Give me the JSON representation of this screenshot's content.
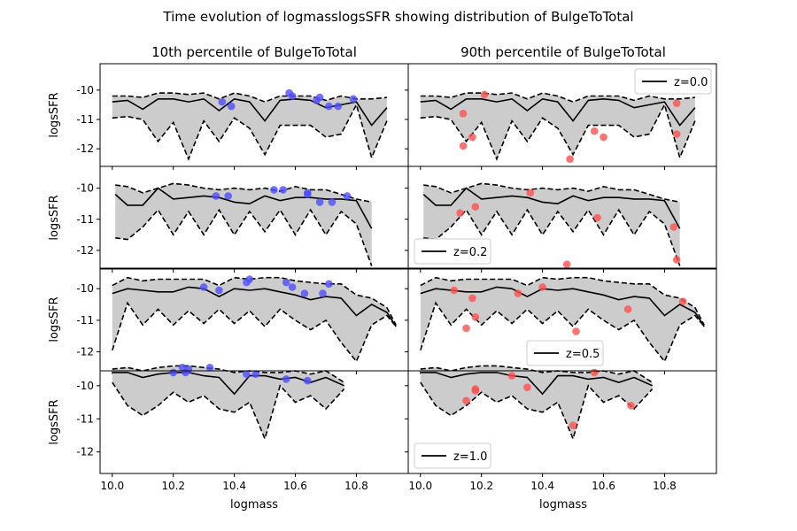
{
  "title": "Time evolution of logmasslogsSFR showing distribution of BulgeToTotal",
  "colors": {
    "band_fill": "#cccccc",
    "line": "#000000",
    "left_points": "#4d4dff",
    "right_points": "#ff5050",
    "background": "#ffffff"
  },
  "chart_data": {
    "type": "line",
    "layout": "4 rows x 2 columns small multiples",
    "xlabel": "logmass",
    "ylabel": "logsSFR",
    "xlim": [
      9.96,
      10.97
    ],
    "x_ticks": [
      "10.0",
      "10.2",
      "10.4",
      "10.6",
      "10.8"
    ],
    "grid": false,
    "column_titles": [
      "10th percentile of BulgeToTotal",
      "90th percentile of BulgeToTotal"
    ],
    "rows": [
      {
        "legend": "z=0.0",
        "legend_position": "upper right",
        "ylim": [
          -12.6,
          -9.1
        ],
        "y_ticks": [
          "-10",
          "-11",
          "-12"
        ],
        "x": [
          10.0,
          10.05,
          10.1,
          10.15,
          10.2,
          10.25,
          10.3,
          10.35,
          10.4,
          10.45,
          10.5,
          10.55,
          10.6,
          10.65,
          10.7,
          10.75,
          10.8,
          10.85,
          10.9
        ],
        "median": [
          -10.4,
          -10.35,
          -10.65,
          -10.3,
          -10.3,
          -10.4,
          -10.3,
          -10.7,
          -10.3,
          -10.4,
          -11.05,
          -10.35,
          -10.3,
          -10.35,
          -10.6,
          -10.5,
          -10.4,
          -11.2,
          -10.6
        ],
        "upper": [
          -10.2,
          -10.2,
          -10.25,
          -10.1,
          -10.1,
          -10.15,
          -10.1,
          -10.3,
          -10.1,
          -10.2,
          -10.4,
          -10.2,
          -10.2,
          -10.2,
          -10.35,
          -10.2,
          -10.3,
          -10.3,
          -10.25
        ],
        "lower": [
          -10.95,
          -10.9,
          -11.0,
          -11.75,
          -11.1,
          -12.35,
          -11.05,
          -11.75,
          -10.95,
          -11.3,
          -12.2,
          -11.2,
          -11.2,
          -11.2,
          -11.6,
          -11.5,
          -10.5,
          -12.3,
          -11.05
        ],
        "points_left": [
          [
            10.36,
            -10.4
          ],
          [
            10.39,
            -10.55
          ],
          [
            10.58,
            -10.1
          ],
          [
            10.59,
            -10.2
          ],
          [
            10.67,
            -10.35
          ],
          [
            10.68,
            -10.25
          ],
          [
            10.71,
            -10.55
          ],
          [
            10.74,
            -10.55
          ],
          [
            10.79,
            -10.3
          ]
        ],
        "points_right": [
          [
            10.14,
            -10.8
          ],
          [
            10.14,
            -11.9
          ],
          [
            10.17,
            -11.6
          ],
          [
            10.21,
            -10.15
          ],
          [
            10.49,
            -12.35
          ],
          [
            10.57,
            -11.4
          ],
          [
            10.6,
            -11.6
          ],
          [
            10.84,
            -10.45
          ],
          [
            10.84,
            -11.5
          ]
        ]
      },
      {
        "legend": "z=0.2",
        "legend_position": "lower left",
        "ylim": [
          -12.6,
          -9.3
        ],
        "y_ticks": [
          "-10",
          "-11",
          "-12"
        ],
        "x": [
          10.01,
          10.05,
          10.1,
          10.15,
          10.2,
          10.25,
          10.3,
          10.35,
          10.4,
          10.45,
          10.5,
          10.55,
          10.6,
          10.65,
          10.7,
          10.75,
          10.8,
          10.85
        ],
        "median": [
          -10.2,
          -10.55,
          -10.55,
          -10.0,
          -10.35,
          -10.3,
          -10.25,
          -10.3,
          -10.45,
          -10.5,
          -10.25,
          -10.4,
          -10.3,
          -10.3,
          -10.35,
          -10.35,
          -10.4,
          -11.3
        ],
        "upper": [
          -9.9,
          -9.95,
          -10.15,
          -10.0,
          -9.85,
          -9.9,
          -10.0,
          -10.05,
          -10.0,
          -10.05,
          -10.0,
          -10.1,
          -9.95,
          -10.05,
          -10.05,
          -10.2,
          -10.35,
          -10.45
        ],
        "lower": [
          -11.6,
          -11.65,
          -11.25,
          -10.7,
          -11.5,
          -10.75,
          -11.5,
          -10.7,
          -11.5,
          -10.75,
          -11.4,
          -10.7,
          -11.5,
          -10.7,
          -11.5,
          -10.75,
          -11.15,
          -12.5
        ],
        "points_left": [
          [
            10.34,
            -10.25
          ],
          [
            10.38,
            -10.25
          ],
          [
            10.53,
            -10.05
          ],
          [
            10.56,
            -10.05
          ],
          [
            10.64,
            -10.15
          ],
          [
            10.64,
            -10.2
          ],
          [
            10.68,
            -10.45
          ],
          [
            10.72,
            -10.45
          ],
          [
            10.77,
            -10.25
          ]
        ],
        "points_right": [
          [
            10.13,
            -10.8
          ],
          [
            10.18,
            -10.6
          ],
          [
            10.36,
            -10.15
          ],
          [
            10.48,
            -12.45
          ],
          [
            10.58,
            -10.95
          ],
          [
            10.83,
            -11.25
          ],
          [
            10.84,
            -12.3
          ]
        ]
      },
      {
        "legend": "z=0.5",
        "legend_position": "lower center",
        "ylim": [
          -12.6,
          -9.35
        ],
        "y_ticks": [
          "-10",
          "-11",
          "-12"
        ],
        "x": [
          10.0,
          10.05,
          10.1,
          10.15,
          10.2,
          10.25,
          10.3,
          10.35,
          10.4,
          10.45,
          10.5,
          10.55,
          10.6,
          10.65,
          10.7,
          10.75,
          10.8,
          10.85,
          10.9,
          10.93
        ],
        "median": [
          -10.15,
          -10.0,
          -10.05,
          -10.1,
          -10.1,
          -9.95,
          -10.0,
          -10.25,
          -10.0,
          -10.05,
          -10.0,
          -10.1,
          -10.2,
          -10.35,
          -10.25,
          -10.3,
          -10.85,
          -10.5,
          -10.75,
          -11.2
        ],
        "upper": [
          -9.9,
          -9.65,
          -9.75,
          -9.7,
          -9.7,
          -9.7,
          -9.7,
          -9.9,
          -9.65,
          -9.7,
          -9.65,
          -9.65,
          -9.75,
          -9.8,
          -9.85,
          -9.85,
          -10.2,
          -10.3,
          -10.6,
          -11.15
        ],
        "lower": [
          -11.95,
          -10.45,
          -11.15,
          -10.65,
          -11.15,
          -10.7,
          -11.1,
          -10.65,
          -11.1,
          -10.7,
          -11.2,
          -10.65,
          -11.0,
          -11.3,
          -11.0,
          -11.7,
          -12.3,
          -11.15,
          -10.85,
          -11.2
        ],
        "points_left": [
          [
            10.3,
            -9.95
          ],
          [
            10.35,
            -10.05
          ],
          [
            10.44,
            -9.8
          ],
          [
            10.45,
            -9.7
          ],
          [
            10.57,
            -9.8
          ],
          [
            10.59,
            -9.95
          ],
          [
            10.63,
            -10.15
          ],
          [
            10.69,
            -10.15
          ],
          [
            10.71,
            -9.85
          ]
        ],
        "points_right": [
          [
            10.11,
            -10.05
          ],
          [
            10.15,
            -11.25
          ],
          [
            10.17,
            -10.3
          ],
          [
            10.18,
            -10.9
          ],
          [
            10.32,
            -10.15
          ],
          [
            10.4,
            -9.95
          ],
          [
            10.51,
            -11.35
          ],
          [
            10.68,
            -10.65
          ],
          [
            10.86,
            -10.4
          ]
        ]
      },
      {
        "legend": "z=1.0",
        "legend_position": "lower left",
        "ylim": [
          -12.65,
          -9.55
        ],
        "y_ticks": [
          "-10",
          "-11",
          "-12"
        ],
        "x": [
          10.0,
          10.05,
          10.1,
          10.15,
          10.2,
          10.25,
          10.3,
          10.35,
          10.4,
          10.45,
          10.5,
          10.55,
          10.6,
          10.65,
          10.7,
          10.76
        ],
        "median": [
          -9.6,
          -9.6,
          -9.75,
          -9.65,
          -9.6,
          -9.6,
          -9.7,
          -9.75,
          -10.25,
          -9.7,
          -9.7,
          -9.8,
          -9.75,
          -9.9,
          -9.75,
          -10.0
        ],
        "upper": [
          -9.5,
          -9.45,
          -9.55,
          -9.45,
          -9.4,
          -9.4,
          -9.45,
          -9.5,
          -9.6,
          -9.55,
          -9.6,
          -9.6,
          -9.55,
          -9.65,
          -9.55,
          -9.9
        ],
        "lower": [
          -9.9,
          -10.6,
          -10.9,
          -10.6,
          -10.2,
          -10.5,
          -10.3,
          -10.7,
          -10.8,
          -10.5,
          -11.6,
          -10.0,
          -10.5,
          -10.3,
          -10.7,
          -10.1
        ],
        "points_left": [
          [
            10.2,
            -9.6
          ],
          [
            10.23,
            -9.45
          ],
          [
            10.24,
            -9.6
          ],
          [
            10.25,
            -9.5
          ],
          [
            10.32,
            -9.45
          ],
          [
            10.44,
            -9.65
          ],
          [
            10.47,
            -9.65
          ],
          [
            10.57,
            -9.8
          ],
          [
            10.64,
            -9.85
          ]
        ],
        "points_right": [
          [
            10.15,
            -10.45
          ],
          [
            10.18,
            -10.15
          ],
          [
            10.18,
            -10.1
          ],
          [
            10.3,
            -9.7
          ],
          [
            10.35,
            -10.05
          ],
          [
            10.5,
            -11.2
          ],
          [
            10.57,
            -9.6
          ],
          [
            10.69,
            -10.6
          ]
        ]
      }
    ]
  }
}
